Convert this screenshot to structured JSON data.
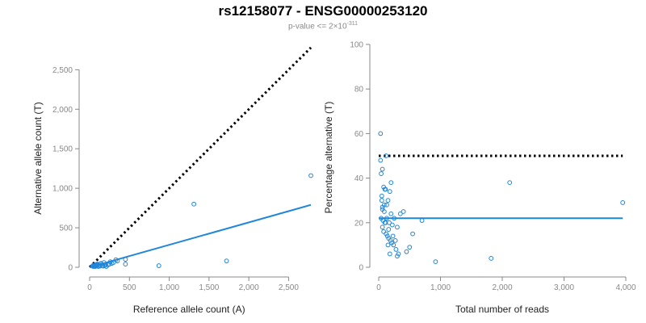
{
  "title": "rs12158077 - ENSG00000253120",
  "subtitle": {
    "prefix": "p-value <= 2×10",
    "exponent": "-311"
  },
  "colors": {
    "points": "#1f86d8",
    "fit": "#1f86d8",
    "reference": "#000000",
    "axis": "#888888"
  },
  "chart_data": [
    {
      "type": "scatter",
      "xlabel": "Reference allele count (A)",
      "ylabel": "Alternative allele count (T)",
      "xlim": [
        0,
        2800
      ],
      "ylim": [
        0,
        2800
      ],
      "xticks": [
        0,
        500,
        1000,
        1500,
        2000,
        2500
      ],
      "xtick_labels": [
        "0",
        "500",
        "1,000",
        "1,500",
        "2,000",
        "2,500"
      ],
      "yticks": [
        0,
        500,
        1000,
        1500,
        2000,
        2500
      ],
      "ytick_labels": [
        "0",
        "500",
        "1,000",
        "1,500",
        "2,000",
        "2,500"
      ],
      "reference_line": {
        "name": "1:1 (50%)",
        "style": "dotted",
        "from": [
          0,
          0
        ],
        "to": [
          2780,
          2780
        ]
      },
      "fit_line": {
        "name": "fit",
        "from": [
          0,
          0
        ],
        "to": [
          2780,
          790
        ]
      },
      "points": {
        "x": [
          2780,
          1310,
          1720,
          870,
          450,
          450,
          330,
          260,
          200,
          180,
          150,
          140,
          120,
          100,
          90,
          80,
          70,
          60,
          55,
          50,
          45,
          40,
          130,
          110,
          160,
          170,
          190,
          210,
          230,
          250,
          280,
          300,
          350,
          95,
          85,
          75,
          65
        ],
        "y": [
          1160,
          800,
          80,
          20,
          100,
          40,
          95,
          70,
          30,
          60,
          40,
          50,
          25,
          30,
          20,
          15,
          10,
          25,
          20,
          15,
          10,
          20,
          15,
          10,
          20,
          15,
          25,
          10,
          30,
          40,
          50,
          60,
          80,
          40,
          35,
          30,
          12
        ]
      }
    },
    {
      "type": "scatter",
      "xlabel": "Total number of reads",
      "ylabel": "Percentage alternative (T)",
      "xlim": [
        0,
        4000
      ],
      "ylim": [
        0,
        100
      ],
      "xticks": [
        0,
        1000,
        2000,
        3000,
        4000
      ],
      "xtick_labels": [
        "0",
        "1,000",
        "2,000",
        "3,000",
        "4,000"
      ],
      "yticks": [
        0,
        20,
        40,
        60,
        80,
        100
      ],
      "ytick_labels": [
        "0",
        "20",
        "40",
        "60",
        "80",
        "100"
      ],
      "reference_line": {
        "name": "50%",
        "style": "dotted",
        "from": [
          0,
          50
        ],
        "to": [
          3950,
          50
        ]
      },
      "fit_line": {
        "name": "fit",
        "from": [
          0,
          22
        ],
        "to": [
          3950,
          22
        ]
      },
      "points": {
        "x": [
          30,
          30,
          60,
          40,
          120,
          80,
          200,
          50,
          100,
          150,
          180,
          130,
          60,
          90,
          200,
          250,
          40,
          70,
          110,
          170,
          220,
          300,
          350,
          400,
          60,
          80,
          120,
          140,
          160,
          190,
          210,
          240,
          280,
          320,
          450,
          500,
          550,
          700,
          920,
          1820,
          2120,
          3950,
          50,
          90,
          130,
          100,
          160,
          230,
          270,
          300,
          150,
          180,
          60,
          110
        ],
        "y": [
          60,
          48,
          44,
          42,
          50,
          36,
          38,
          32,
          35,
          30,
          34,
          28,
          26,
          25,
          24,
          22,
          22,
          21,
          20,
          20,
          19,
          18,
          24,
          25,
          18,
          16,
          15,
          14,
          13,
          12,
          11,
          10,
          8,
          6,
          7,
          9,
          15,
          21,
          2.5,
          4,
          38,
          29,
          30,
          28,
          22,
          20,
          17,
          14,
          12,
          5,
          10,
          6,
          27,
          35
        ]
      }
    }
  ]
}
